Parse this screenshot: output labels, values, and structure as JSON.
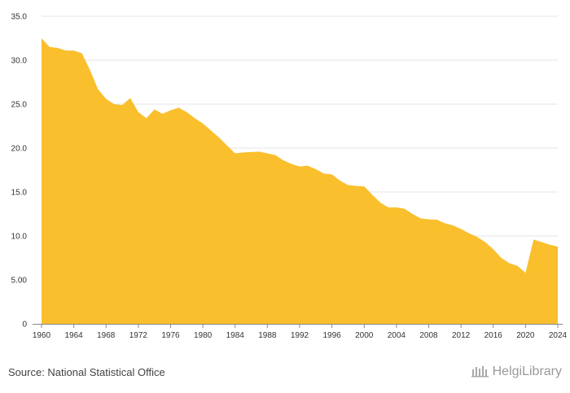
{
  "chart_data": {
    "type": "area",
    "title": "",
    "xlabel": "",
    "ylabel": "",
    "ylim": [
      0,
      35
    ],
    "grid": true,
    "legend": "none",
    "color": "#f9bf2d",
    "y_ticks": [
      {
        "value": 0,
        "label": "0"
      },
      {
        "value": 5,
        "label": "5.00"
      },
      {
        "value": 10,
        "label": "10.0"
      },
      {
        "value": 15,
        "label": "15.0"
      },
      {
        "value": 20,
        "label": "20.0"
      },
      {
        "value": 25,
        "label": "25.0"
      },
      {
        "value": 30,
        "label": "30.0"
      },
      {
        "value": 35,
        "label": "35.0"
      }
    ],
    "x_ticks": [
      1960,
      1964,
      1968,
      1972,
      1976,
      1980,
      1984,
      1988,
      1992,
      1996,
      2000,
      2004,
      2008,
      2012,
      2016,
      2020,
      2024
    ],
    "x": [
      1960,
      1961,
      1962,
      1963,
      1964,
      1965,
      1966,
      1967,
      1968,
      1969,
      1970,
      1971,
      1972,
      1973,
      1974,
      1975,
      1976,
      1977,
      1978,
      1979,
      1980,
      1981,
      1982,
      1983,
      1984,
      1985,
      1986,
      1987,
      1988,
      1989,
      1990,
      1991,
      1992,
      1993,
      1994,
      1995,
      1996,
      1997,
      1998,
      1999,
      2000,
      2001,
      2002,
      2003,
      2004,
      2005,
      2006,
      2007,
      2008,
      2009,
      2010,
      2011,
      2012,
      2013,
      2014,
      2015,
      2016,
      2017,
      2018,
      2019,
      2020,
      2021,
      2022,
      2023,
      2024
    ],
    "values": [
      32.5,
      31.5,
      31.4,
      31.1,
      31.1,
      30.8,
      28.9,
      26.7,
      25.6,
      25.0,
      24.9,
      25.7,
      24.1,
      23.4,
      24.4,
      23.9,
      24.3,
      24.6,
      24.1,
      23.4,
      22.8,
      22.0,
      21.2,
      20.3,
      19.4,
      19.5,
      19.55,
      19.6,
      19.4,
      19.2,
      18.6,
      18.2,
      17.9,
      18.0,
      17.6,
      17.1,
      17.0,
      16.3,
      15.8,
      15.7,
      15.65,
      14.7,
      13.8,
      13.25,
      13.25,
      13.1,
      12.5,
      12.0,
      11.9,
      11.85,
      11.45,
      11.2,
      10.8,
      10.3,
      9.9,
      9.3,
      8.5,
      7.5,
      6.9,
      6.6,
      5.8,
      9.6,
      9.3,
      9.0,
      8.8
    ]
  },
  "footer": {
    "source": "Source: National Statistical Office",
    "brand": "HelgiLibrary"
  }
}
